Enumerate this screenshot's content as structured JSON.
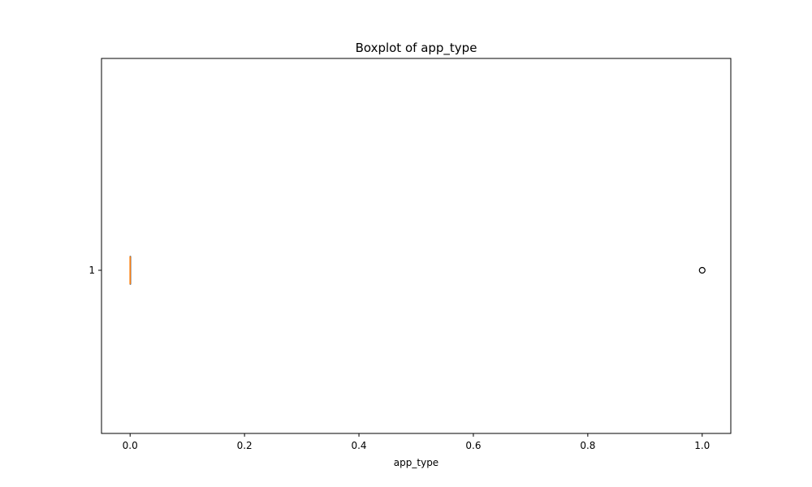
{
  "chart_data": {
    "type": "boxplot",
    "orientation": "horizontal",
    "title": "Boxplot of app_type",
    "xlabel": "app_type",
    "ylabel": "",
    "xlim": [
      -0.05,
      1.05
    ],
    "x_ticks": [
      0.0,
      0.2,
      0.4,
      0.6,
      0.8,
      1.0
    ],
    "x_tick_labels": [
      "0.0",
      "0.2",
      "0.4",
      "0.6",
      "0.8",
      "1.0"
    ],
    "y_tick_labels": [
      "1"
    ],
    "grid": false,
    "boxes": [
      {
        "position": 1,
        "q1": 0.0,
        "median": 0.0,
        "q3": 0.0,
        "whisker_low": 0.0,
        "whisker_high": 0.0,
        "outliers": [
          1.0
        ]
      }
    ],
    "colors": {
      "median": "#ff7f0e",
      "box": "#000000",
      "outlier": "#000000"
    }
  }
}
